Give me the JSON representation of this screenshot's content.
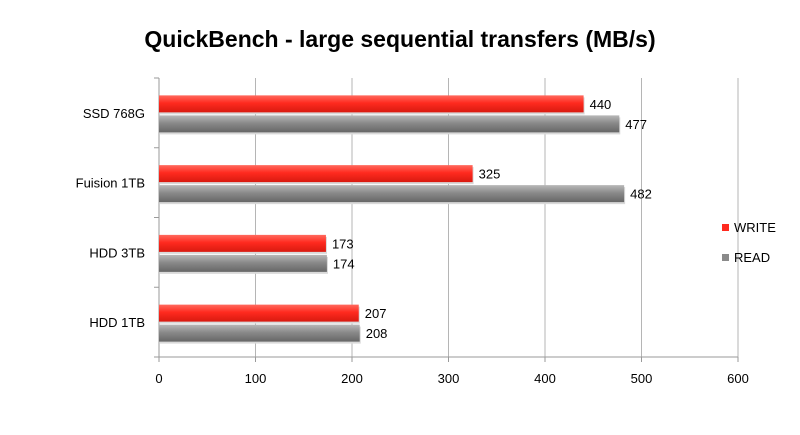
{
  "chart_data": {
    "type": "bar",
    "orientation": "horizontal",
    "title": "QuickBench - large sequential transfers (MB/s)",
    "xlabel": "",
    "ylabel": "",
    "categories": [
      "SSD 768G",
      "Fuision 1TB",
      "HDD 3TB",
      "HDD 1TB"
    ],
    "series": [
      {
        "name": "WRITE",
        "values": [
          440,
          325,
          173,
          207
        ],
        "color": "#ff2a1f"
      },
      {
        "name": "READ",
        "values": [
          477,
          482,
          174,
          208
        ],
        "color": "#8a8a8a"
      }
    ],
    "xlim": [
      0,
      600
    ],
    "xticks": [
      0,
      100,
      200,
      300,
      400,
      500,
      600
    ],
    "grid": "vertical",
    "legend_position": "right",
    "data_labels": true
  }
}
